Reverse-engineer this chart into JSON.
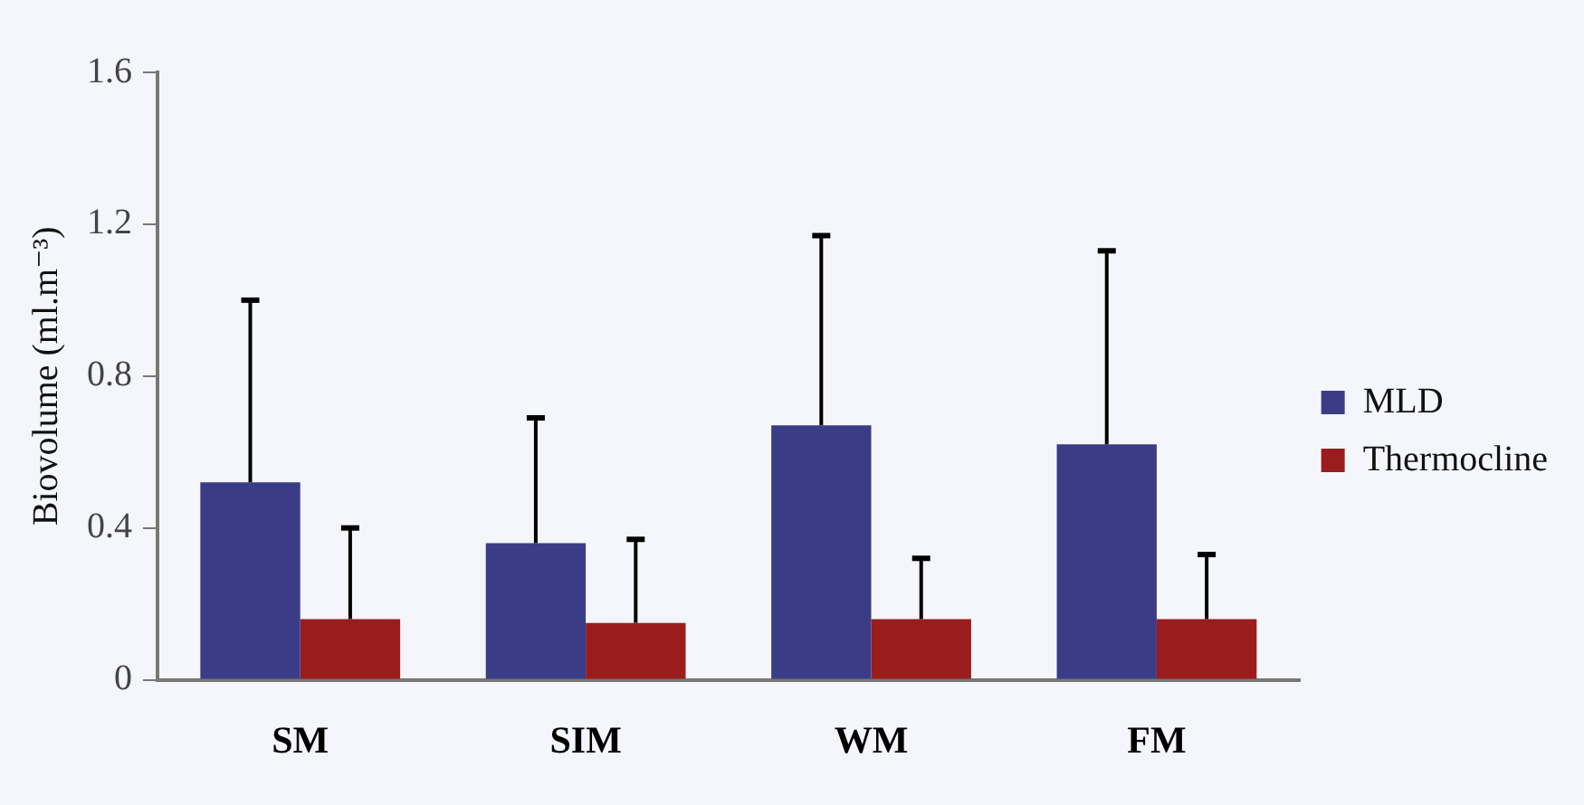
{
  "chart_data": {
    "type": "bar",
    "ylabel": "Biovolume (ml.m⁻³)",
    "categories": [
      "SM",
      "SIM",
      "WM",
      "FM"
    ],
    "series": [
      {
        "name": "MLD",
        "color": "#3a3d86",
        "values": [
          0.52,
          0.36,
          0.67,
          0.62
        ],
        "errors": [
          [
            0.52,
            1.0
          ],
          [
            0.36,
            0.69
          ],
          [
            0.67,
            1.17
          ],
          [
            0.62,
            1.13
          ]
        ]
      },
      {
        "name": "Thermocline",
        "color": "#9b1c1c",
        "values": [
          0.16,
          0.15,
          0.16,
          0.16
        ],
        "errors": [
          [
            0.16,
            0.4
          ],
          [
            0.15,
            0.37
          ],
          [
            0.16,
            0.32
          ],
          [
            0.16,
            0.33
          ]
        ]
      }
    ],
    "ylim": [
      0,
      1.6
    ],
    "yticks": [
      0,
      0.4,
      0.8,
      1.2,
      1.6
    ],
    "legend": "right"
  }
}
